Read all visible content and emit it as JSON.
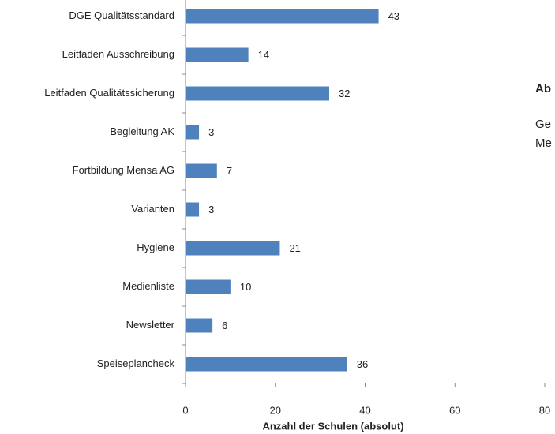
{
  "chart_data": {
    "type": "bar",
    "orientation": "horizontal",
    "categories": [
      "DGE Qualitätsstandard",
      "Leitfaden Ausschreibung",
      "Leitfaden Qualitätssicherung",
      "Begleitung AK",
      "Fortbildung Mensa AG",
      "Varianten",
      "Hygiene",
      "Medienliste",
      "Newsletter",
      "Speiseplancheck"
    ],
    "values": [
      43,
      14,
      32,
      3,
      7,
      3,
      21,
      10,
      6,
      36
    ],
    "color": "#4f81bd",
    "xlabel": "Anzahl der Schulen (absolut)",
    "xlim": [
      0,
      80
    ],
    "xticks": [
      0,
      20,
      40,
      60,
      80
    ],
    "annotations": [
      "Ab",
      "Ge",
      "Me"
    ]
  }
}
